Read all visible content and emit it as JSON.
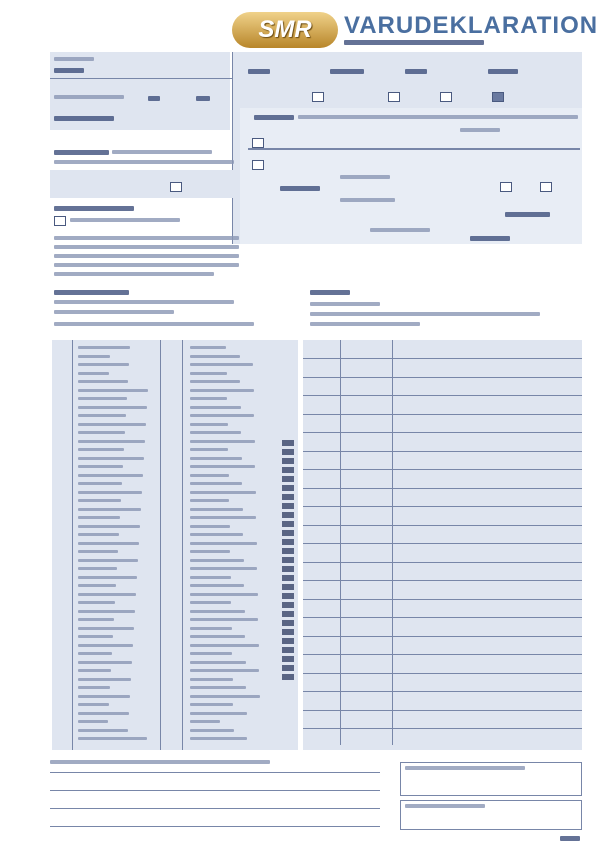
{
  "header": {
    "logo": "SMR",
    "title": "VARUDEKLARATION"
  },
  "colors": {
    "panel": "#dfe5f0",
    "accent": "#4a6fa0",
    "lines": "#7886a8",
    "logo": "#c9a045"
  }
}
